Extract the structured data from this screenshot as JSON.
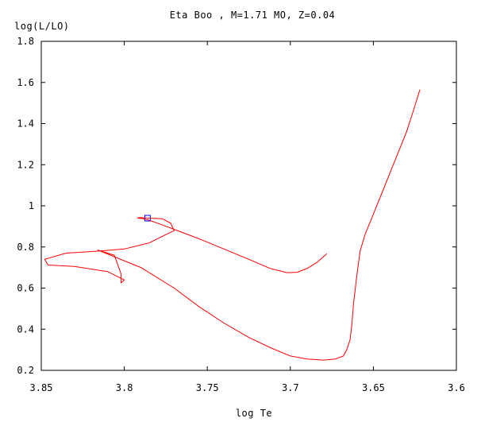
{
  "chart_data": {
    "type": "line",
    "title": "Eta Boo , M=1.71 MO, Z=0.04",
    "xlabel": "log Te",
    "ylabel": "log(L/LO)",
    "xlim": [
      3.85,
      3.6
    ],
    "ylim": [
      0.2,
      1.8
    ],
    "x_reversed": true,
    "grid": false,
    "x_ticks": [
      3.85,
      3.8,
      3.75,
      3.7,
      3.65,
      3.6
    ],
    "x_tick_labels": [
      "3.85",
      "3.8",
      "3.75",
      "3.7",
      "3.65",
      "3.6"
    ],
    "y_ticks": [
      0.2,
      0.4,
      0.6,
      0.8,
      1.0,
      1.2,
      1.4,
      1.6,
      1.8
    ],
    "y_tick_labels": [
      "0.2",
      "0.4",
      "0.6",
      "0.8",
      "1",
      "1.2",
      "1.4",
      "1.6",
      "1.8"
    ],
    "series": [
      {
        "color": "#ff0000",
        "x": [
          3.678,
          3.684,
          3.69,
          3.696,
          3.702,
          3.712,
          3.725,
          3.74,
          3.755,
          3.768,
          3.778,
          3.785,
          3.789,
          3.792,
          3.791,
          3.785,
          3.777,
          3.772,
          3.77,
          3.775,
          3.785,
          3.8,
          3.815,
          3.835,
          3.848,
          3.846,
          3.83,
          3.81,
          3.8,
          3.802,
          3.802,
          3.806,
          3.816,
          3.79,
          3.77,
          3.755,
          3.74,
          3.725,
          3.712,
          3.7,
          3.69,
          3.68,
          3.673,
          3.668,
          3.666,
          3.664,
          3.663,
          3.662,
          3.66,
          3.658,
          3.655,
          3.65,
          3.645,
          3.64,
          3.635,
          3.63,
          3.626,
          3.622
        ],
        "y": [
          0.767,
          0.725,
          0.695,
          0.677,
          0.675,
          0.695,
          0.74,
          0.79,
          0.84,
          0.88,
          0.91,
          0.93,
          0.938,
          0.94,
          0.943,
          0.94,
          0.937,
          0.915,
          0.879,
          0.86,
          0.82,
          0.79,
          0.78,
          0.77,
          0.74,
          0.712,
          0.705,
          0.68,
          0.64,
          0.625,
          0.67,
          0.76,
          0.785,
          0.7,
          0.6,
          0.51,
          0.43,
          0.36,
          0.31,
          0.27,
          0.255,
          0.25,
          0.255,
          0.27,
          0.3,
          0.35,
          0.42,
          0.52,
          0.66,
          0.78,
          0.86,
          0.96,
          1.06,
          1.16,
          1.26,
          1.36,
          1.46,
          1.565
        ]
      }
    ],
    "marker": {
      "x": 3.786,
      "y": 0.94,
      "shape": "square",
      "color": "#0000ff"
    }
  }
}
